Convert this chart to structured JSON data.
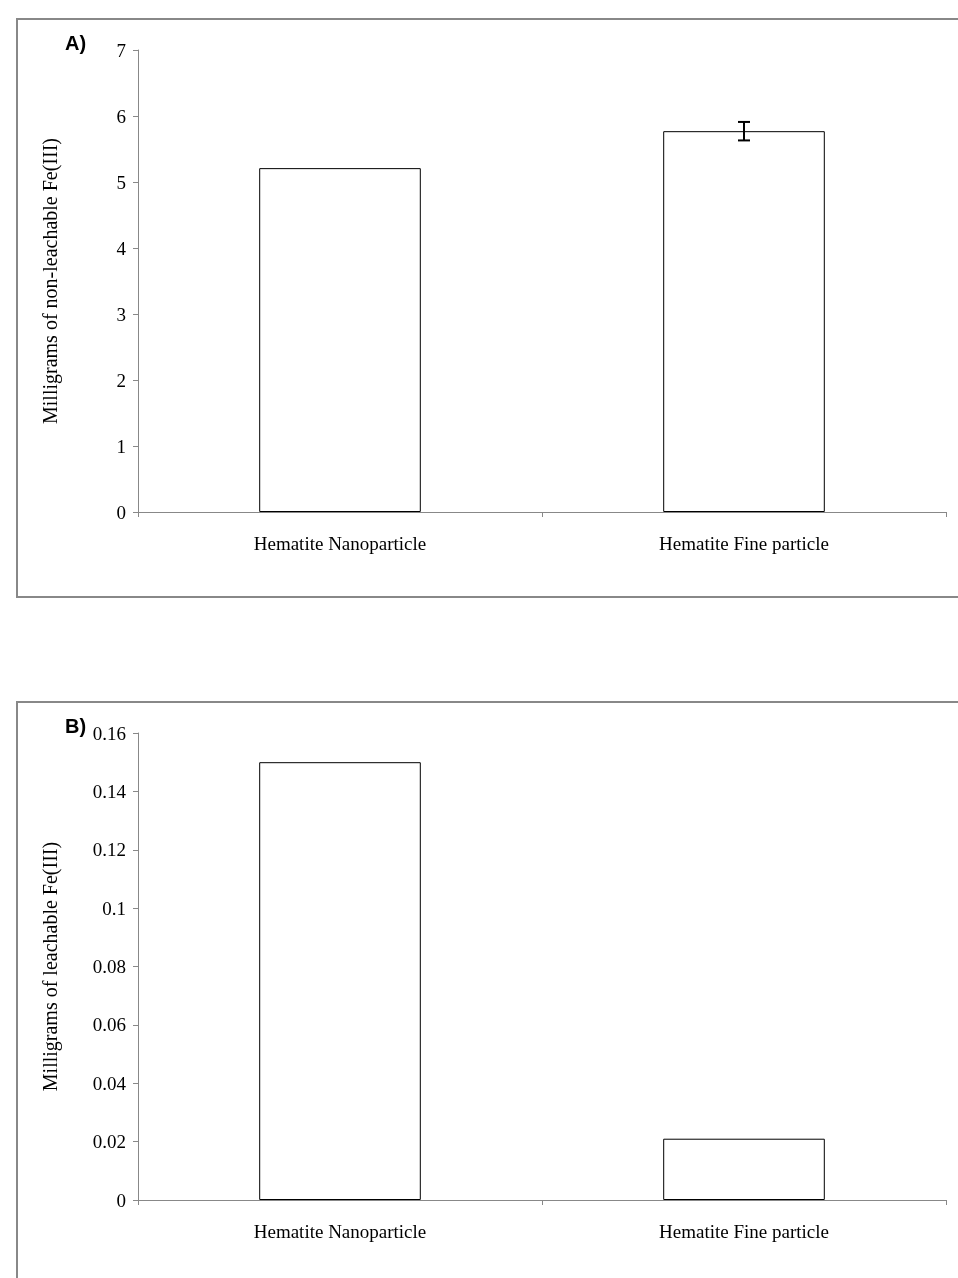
{
  "chart_data": [
    {
      "type": "bar",
      "title": "A)",
      "ylabel": "Milligrams of non-leachable Fe(III)",
      "categories": [
        "Hematite Nanoparticle",
        "Hematite Fine particle"
      ],
      "values": [
        5.21,
        5.77
      ],
      "errors": [
        null,
        0.14
      ],
      "color": "#ffffff",
      "ylim": [
        0,
        7
      ],
      "yticks": [
        0,
        1,
        2,
        3,
        4,
        5,
        6,
        7
      ]
    },
    {
      "type": "bar",
      "title": "B)",
      "ylabel": "Milligrams of leachable Fe(III)",
      "categories": [
        "Hematite Nanoparticle",
        "Hematite Fine particle"
      ],
      "values": [
        0.15,
        0.021
      ],
      "color": "#ffffff",
      "ylim": [
        0,
        0.16
      ],
      "yticks": [
        0,
        0.02,
        0.04,
        0.06,
        0.08,
        0.1,
        0.12,
        0.14,
        0.16
      ]
    }
  ]
}
